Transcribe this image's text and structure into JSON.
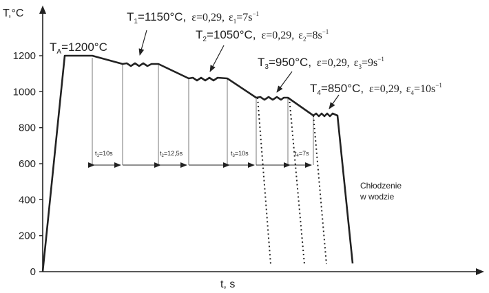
{
  "chart_data": {
    "type": "line",
    "ylabel": "T,°C",
    "xlabel": "t, s",
    "yticks": [
      "0",
      "200",
      "400",
      "600",
      "800",
      "1000",
      "1200"
    ],
    "ylim": [
      0,
      1400
    ],
    "grid": false,
    "austenitizing_label": "T",
    "austenitizing_sub": "A",
    "austenitizing_value": "=1200°C",
    "steps": [
      {
        "t": "T",
        "sub": "1",
        "rest": "=1150°C,",
        "eps": "ε=0,29,",
        "rate_sym": "ε",
        "rate_sub": "1",
        "rate_val": "=7s",
        "rate_sup": "−1"
      },
      {
        "t": "T",
        "sub": "2",
        "rest": "=1050°C,",
        "eps": "ε=0,29,",
        "rate_sym": "ε",
        "rate_sub": "2",
        "rate_val": "=8s",
        "rate_sup": "−1"
      },
      {
        "t": "T",
        "sub": "3",
        "rest": "=950°C,",
        "eps": "ε=0,29,",
        "rate_sym": "ε",
        "rate_sub": "3",
        "rate_val": "=9s",
        "rate_sup": "−1"
      },
      {
        "t": "T",
        "sub": "4",
        "rest": "=850°C,",
        "eps": "ε=0,29,",
        "rate_sym": "ε",
        "rate_sub": "4",
        "rate_val": "=10s",
        "rate_sup": "−1"
      }
    ],
    "intervals": [
      {
        "label": "t",
        "sub": "1",
        "val": "=10s"
      },
      {
        "label": "t",
        "sub": "2",
        "val": "=12,5s"
      },
      {
        "label": "t",
        "sub": "3",
        "val": "=10s"
      },
      {
        "label": "t",
        "sub": "4",
        "val": "=7s"
      }
    ],
    "cooling_label_line1": "Chłodzenie",
    "cooling_label_line2": "w wodzie",
    "profile": {
      "name": "temperature",
      "values": [
        0,
        1200,
        1200,
        1150,
        1150,
        1050,
        1050,
        950,
        950,
        850,
        850,
        0
      ]
    }
  }
}
